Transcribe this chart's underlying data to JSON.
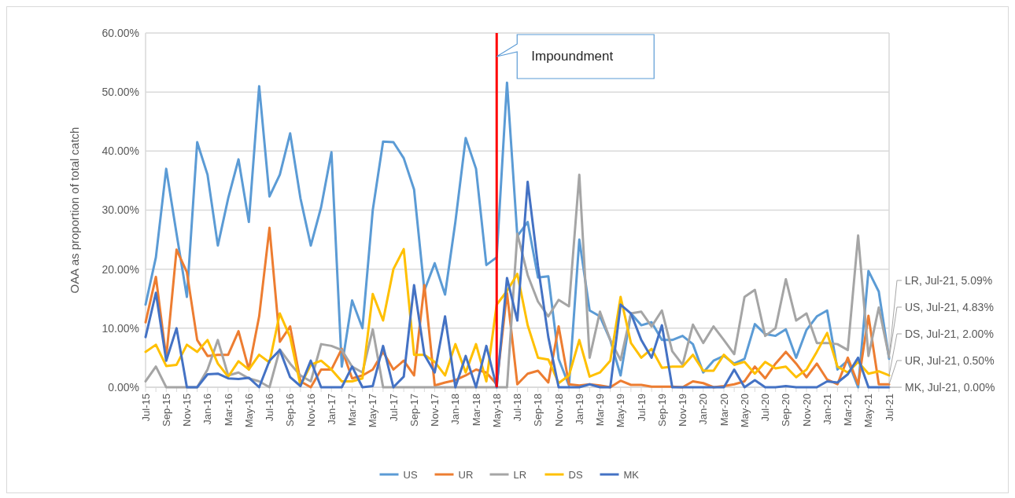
{
  "chart_data": {
    "type": "line",
    "ylabel": "OAA as proportion of total catch",
    "categories": [
      "Jul-15",
      null,
      "Sep-15",
      null,
      "Nov-15",
      null,
      "Jan-16",
      null,
      "Mar-16",
      null,
      "May-16",
      null,
      "Jul-16",
      null,
      "Sep-16",
      null,
      "Nov-16",
      null,
      "Jan-17",
      null,
      "Mar-17",
      null,
      "May-17",
      null,
      "Jul-17",
      null,
      "Sep-17",
      null,
      "Nov-17",
      null,
      "Jan-18",
      null,
      "Mar-18",
      null,
      "May-18",
      null,
      "Jul-18",
      null,
      "Sep-18",
      null,
      "Nov-18",
      null,
      "Jan-19",
      null,
      "Mar-19",
      null,
      "May-19",
      null,
      "Jul-19",
      null,
      "Sep-19",
      null,
      "Nov-19",
      null,
      "Jan-20",
      null,
      "Mar-20",
      null,
      "May-20",
      null,
      "Jul-20",
      null,
      "Sep-20",
      null,
      "Nov-20",
      null,
      "Jan-21",
      null,
      "Mar-21",
      null,
      "May-21",
      null,
      "Jul-21"
    ],
    "series": [
      {
        "name": "US",
        "color": "#5b9bd5",
        "values": [
          14,
          22,
          37,
          26,
          15.3,
          41.5,
          36,
          24,
          32,
          38.6,
          28,
          51,
          32.3,
          36,
          43,
          32,
          24,
          30.5,
          39.8,
          3.5,
          14.7,
          10,
          30,
          41.6,
          41.5,
          38.8,
          33.5,
          16.4,
          21,
          15.7,
          28,
          42.2,
          37,
          20.7,
          22,
          51.6,
          25.6,
          28,
          18.6,
          18.8,
          4.8,
          0.3,
          25,
          13,
          12,
          8,
          2,
          12.5,
          10.5,
          11,
          8,
          8,
          8.7,
          7.3,
          2.5,
          4.5,
          5.3,
          4,
          4.8,
          10.7,
          9,
          8.7,
          9.8,
          5,
          9.7,
          12,
          13,
          3,
          4.5,
          0,
          19.7,
          16.2,
          4.83
        ]
      },
      {
        "name": "UR",
        "color": "#ed7d31",
        "values": [
          11,
          18.7,
          5,
          23.3,
          19.5,
          8,
          5.3,
          5.5,
          5.5,
          9.5,
          3,
          12,
          27,
          7.7,
          10.3,
          1,
          0,
          3,
          3,
          6.5,
          1.5,
          2,
          3,
          6,
          3,
          4.5,
          2,
          17.3,
          0.3,
          0.8,
          1.2,
          2,
          3,
          2.5,
          0.5,
          16,
          0.5,
          2.3,
          2.8,
          0.8,
          10.3,
          0.5,
          0.3,
          0.5,
          0.3,
          0,
          1.1,
          0.4,
          0.4,
          0.1,
          0.1,
          0.1,
          0,
          1,
          0.7,
          0,
          0.2,
          0.5,
          1,
          3.5,
          1.5,
          4,
          6,
          4,
          1.7,
          4,
          1.3,
          0.5,
          5,
          0.5,
          12.1,
          0.5,
          0.5
        ]
      },
      {
        "name": "LR",
        "color": "#a5a5a5",
        "values": [
          1,
          3.5,
          0,
          0,
          0,
          0,
          3,
          8,
          2,
          2.5,
          1.5,
          1,
          0,
          6.4,
          4,
          2,
          1,
          7.3,
          7,
          6.3,
          3.5,
          2.5,
          9.8,
          0,
          0,
          0,
          0,
          0,
          0,
          0,
          0,
          0,
          0,
          0,
          0,
          0,
          26,
          19,
          14.5,
          12,
          14.8,
          13.7,
          36,
          5,
          12.8,
          8,
          4.6,
          12.5,
          12.8,
          10.3,
          13,
          6.1,
          3.8,
          10.6,
          7.5,
          10.3,
          8,
          5.6,
          15.3,
          16.5,
          8.7,
          10,
          18.3,
          11.3,
          12.5,
          7.5,
          7.5,
          7.3,
          6.3,
          25.7,
          5.3,
          13.5,
          5.09
        ]
      },
      {
        "name": "DS",
        "color": "#ffc000",
        "values": [
          6,
          7.2,
          3.6,
          3.8,
          7.2,
          6,
          8,
          4,
          1.8,
          4.4,
          3,
          5.5,
          4.2,
          12.5,
          8.5,
          0.3,
          3.8,
          4.5,
          3,
          1,
          1,
          1.5,
          15.8,
          11.3,
          20,
          23.4,
          5.5,
          5.5,
          4.3,
          2,
          7.3,
          2.5,
          7.3,
          1,
          14,
          16.3,
          19.2,
          10.5,
          5,
          4.7,
          0.7,
          2,
          8,
          1.8,
          2.5,
          4.5,
          15.3,
          7.5,
          5,
          6.5,
          3.3,
          3.5,
          3.5,
          5.5,
          2.8,
          2.8,
          5.5,
          3.8,
          4.3,
          2.3,
          4.3,
          3.2,
          3.5,
          1.7,
          3,
          6,
          9.2,
          3.5,
          2.5,
          4.3,
          2.3,
          2.7,
          2
        ]
      },
      {
        "name": "MK",
        "color": "#4472c4",
        "values": [
          8.5,
          16,
          4.5,
          10,
          0,
          0,
          2.2,
          2.3,
          1.5,
          1.4,
          1.6,
          0,
          4.5,
          6.3,
          1.7,
          0.2,
          4.5,
          0,
          0,
          0,
          3.5,
          0,
          0.2,
          7,
          0,
          1.8,
          17.3,
          5.5,
          2.5,
          12,
          0,
          5.3,
          0,
          7,
          0,
          18.5,
          11.3,
          34.8,
          20.5,
          8.5,
          0,
          0,
          0,
          0.5,
          0,
          0,
          14,
          12.5,
          8,
          5,
          10.5,
          0,
          0,
          0,
          0,
          0,
          0,
          3,
          0,
          1.2,
          0,
          0,
          0.2,
          0,
          0,
          0,
          1,
          0.8,
          2.2,
          5,
          0,
          0,
          0
        ]
      }
    ],
    "ylim": [
      0,
      60
    ],
    "yticks": [
      {
        "value": 0,
        "label": "0.00%"
      },
      {
        "value": 10,
        "label": "10.00%"
      },
      {
        "value": 20,
        "label": "20.00%"
      },
      {
        "value": 30,
        "label": "30.00%"
      },
      {
        "value": 40,
        "label": "40.00%"
      },
      {
        "value": 50,
        "label": "50.00%"
      },
      {
        "value": 60,
        "label": "60.00%"
      }
    ],
    "grid": "y",
    "legend": "bottom",
    "marker": "none",
    "line_style": "solid",
    "ref_lines": [
      {
        "axis": "x",
        "value": "May-18",
        "label": "Impoundment",
        "color": "#ff0000"
      }
    ],
    "annotations": [
      {
        "text": "LR, Jul-21, 5.09%",
        "x": "Jul-21",
        "y": 5.09
      },
      {
        "text": "US, Jul-21, 4.83%",
        "x": "Jul-21",
        "y": 4.83
      },
      {
        "text": "DS, Jul-21, 2.00%",
        "x": "Jul-21",
        "y": 2
      },
      {
        "text": "UR, Jul-21, 0.50%",
        "x": "Jul-21",
        "y": 0.5
      },
      {
        "text": "MK, Jul-21, 0.00%",
        "x": "Jul-21",
        "y": 0
      }
    ]
  }
}
